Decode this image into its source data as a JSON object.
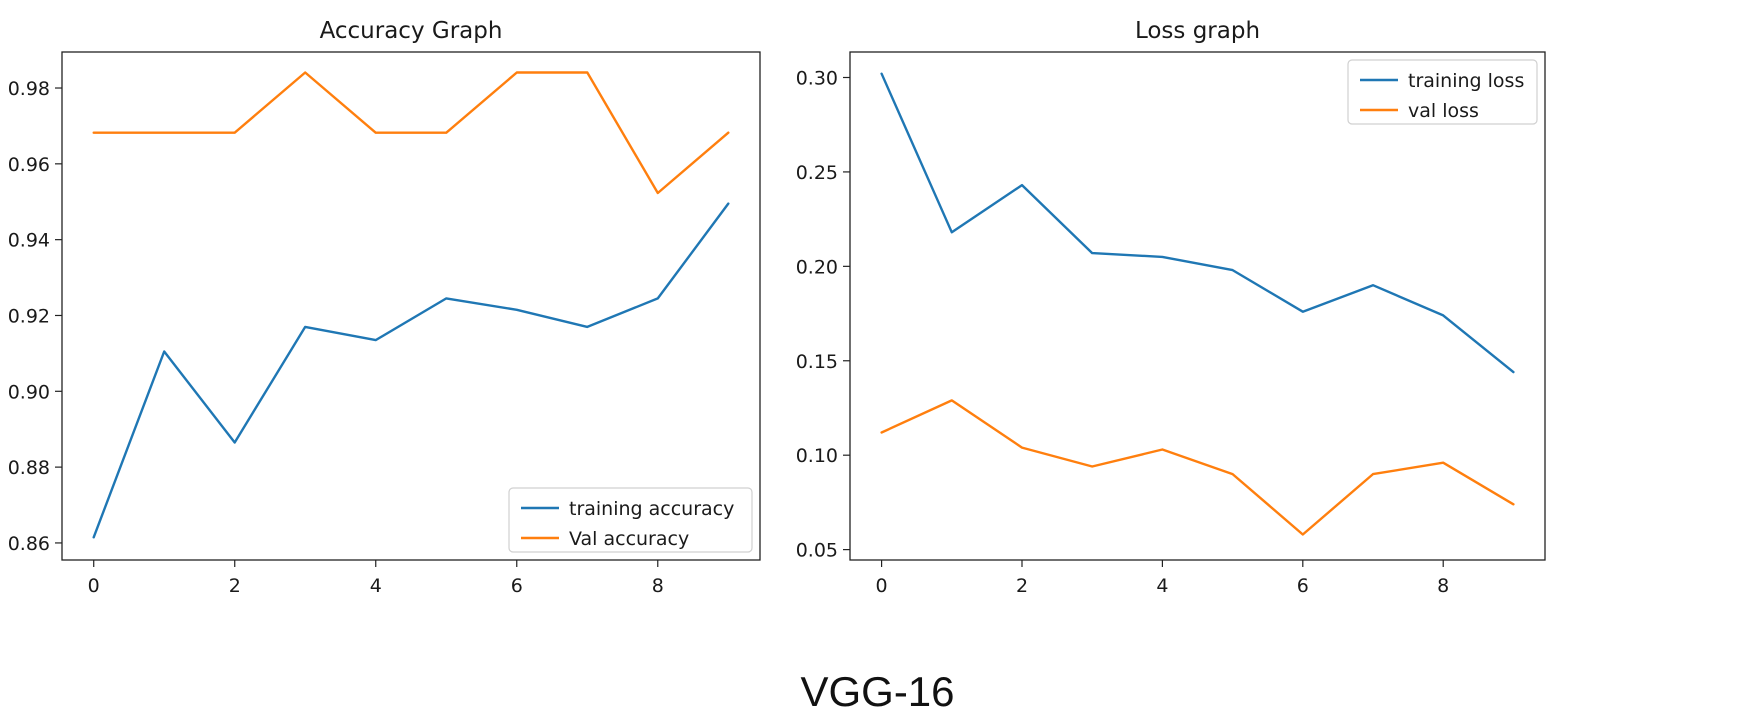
{
  "caption": "VGG-16",
  "colors": {
    "series1": "#1f77b4",
    "series2": "#ff7f0e",
    "axis": "#222222"
  },
  "chart_data": [
    {
      "type": "line",
      "title": "Accuracy Graph",
      "xlabel": "",
      "ylabel": "",
      "x": [
        0,
        1,
        2,
        3,
        4,
        5,
        6,
        7,
        8,
        9
      ],
      "xticks": [
        0,
        2,
        4,
        6,
        8
      ],
      "xlim": [
        -0.45,
        9.45
      ],
      "yticks": [
        0.86,
        0.88,
        0.9,
        0.92,
        0.94,
        0.96,
        0.98
      ],
      "ytick_labels": [
        "0.86",
        "0.88",
        "0.90",
        "0.92",
        "0.94",
        "0.96",
        "0.98"
      ],
      "ylim": [
        0.8555,
        0.9895
      ],
      "grid": false,
      "legend": "bottom-right",
      "series": [
        {
          "name": "training accuracy",
          "values": [
            0.8615,
            0.9105,
            0.8865,
            0.917,
            0.9135,
            0.9245,
            0.9215,
            0.917,
            0.9245,
            0.9495
          ]
        },
        {
          "name": "Val accuracy",
          "values": [
            0.9682,
            0.9682,
            0.9682,
            0.9841,
            0.9682,
            0.9682,
            0.9841,
            0.9841,
            0.9523,
            0.9682
          ]
        }
      ]
    },
    {
      "type": "line",
      "title": "Loss graph",
      "xlabel": "",
      "ylabel": "",
      "x": [
        0,
        1,
        2,
        3,
        4,
        5,
        6,
        7,
        8,
        9
      ],
      "xticks": [
        0,
        2,
        4,
        6,
        8
      ],
      "xlim": [
        -0.45,
        9.45
      ],
      "yticks": [
        0.05,
        0.1,
        0.15,
        0.2,
        0.25,
        0.3
      ],
      "ytick_labels": [
        "0.05",
        "0.10",
        "0.15",
        "0.20",
        "0.25",
        "0.30"
      ],
      "ylim": [
        0.0445,
        0.3135
      ],
      "grid": false,
      "legend": "top-right",
      "series": [
        {
          "name": "training loss",
          "values": [
            0.302,
            0.218,
            0.243,
            0.207,
            0.205,
            0.198,
            0.176,
            0.19,
            0.174,
            0.144
          ]
        },
        {
          "name": "val loss",
          "values": [
            0.112,
            0.129,
            0.104,
            0.094,
            0.103,
            0.09,
            0.058,
            0.09,
            0.096,
            0.074
          ]
        }
      ]
    }
  ]
}
